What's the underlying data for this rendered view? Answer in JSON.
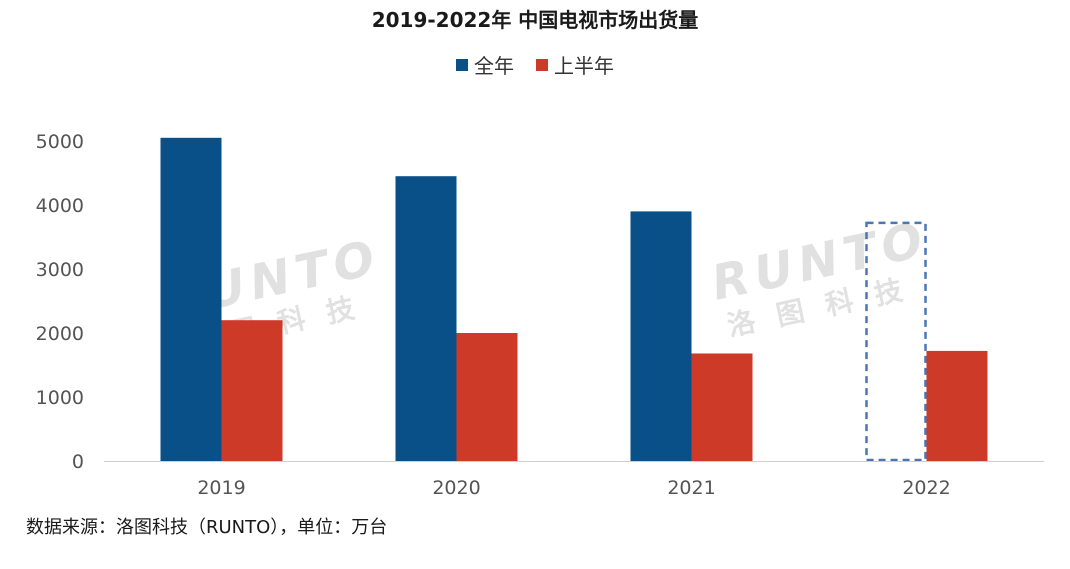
{
  "chart_data": {
    "type": "bar",
    "title": "2019-2022年 中国电视市场出货量",
    "categories": [
      "2019",
      "2020",
      "2021",
      "2022"
    ],
    "series": [
      {
        "name": "全年",
        "color": "#0a5088",
        "values": [
          5050,
          4450,
          3900,
          null
        ]
      },
      {
        "name": "上半年",
        "color": "#cd3a28",
        "values": [
          2200,
          2000,
          1680,
          1720
        ]
      }
    ],
    "forecast": {
      "category": "2022",
      "series": "全年",
      "value": 3720,
      "style": "dashed-outline",
      "color": "#4a76b8"
    },
    "ylim": [
      0,
      5000
    ],
    "yticks": [
      0,
      1000,
      2000,
      3000,
      4000,
      5000
    ],
    "xlabel": "",
    "ylabel": "",
    "grid": false,
    "legend_position": "top-center"
  },
  "source_note": "数据来源：洛图科技（RUNTO），单位：万台",
  "watermark": {
    "brand": "RUNTO",
    "cn": "洛图科技"
  }
}
